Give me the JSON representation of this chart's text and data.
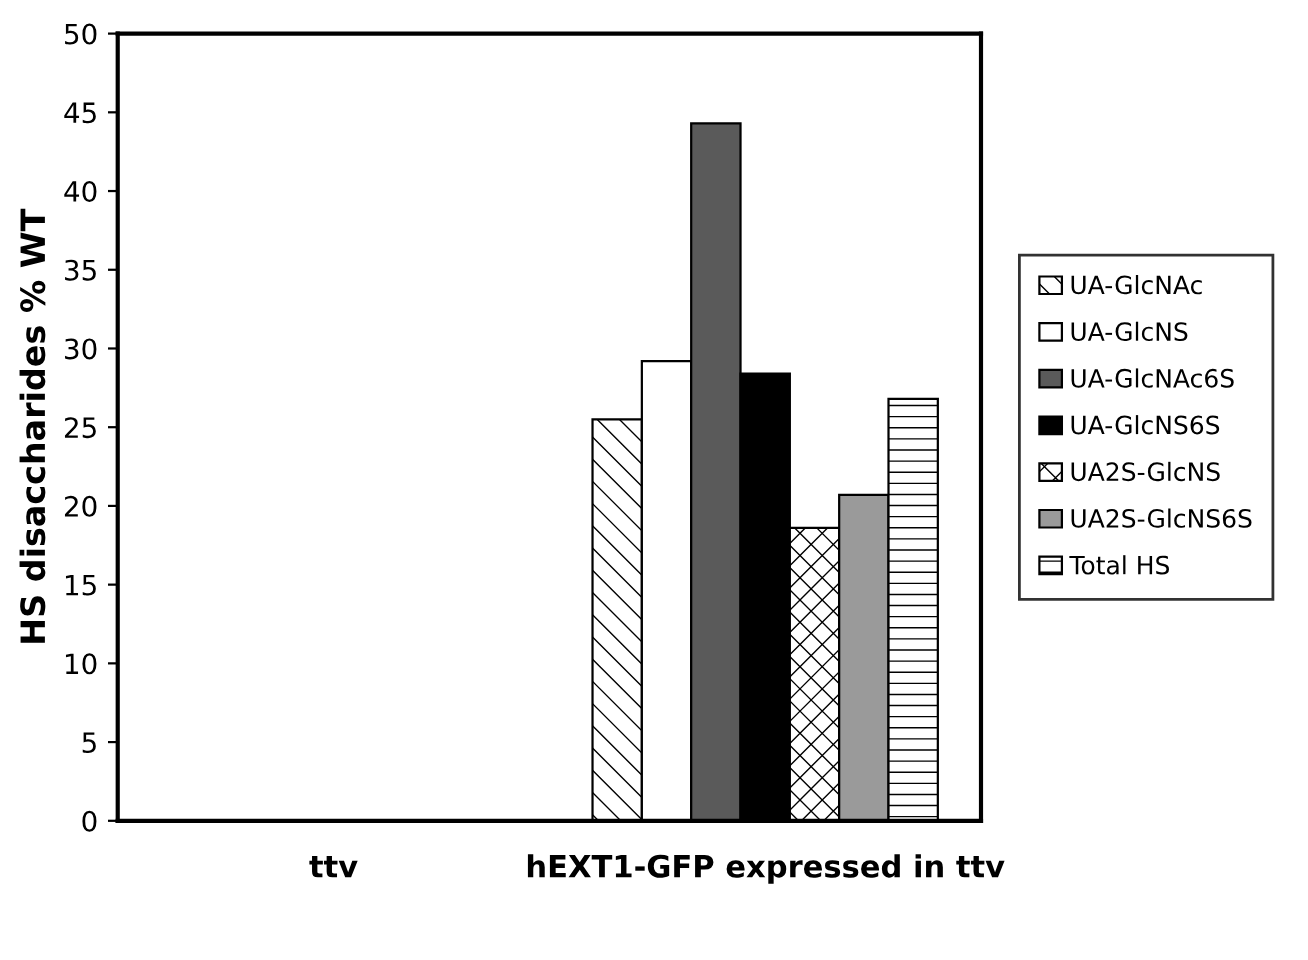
{
  "chart_data": {
    "type": "bar",
    "ylabel": "HS disaccharides % WT",
    "categories": [
      "ttv",
      "hEXT1-GFP expressed in ttv"
    ],
    "series": [
      {
        "name": "UA-GlcNAc",
        "color": "#000000",
        "values": [
          null,
          25.5
        ]
      },
      {
        "name": "UA-GlcNS",
        "color": "#ffffff",
        "values": [
          null,
          29.2
        ]
      },
      {
        "name": "UA-GlcNAc6S",
        "color": "#5a5a5a",
        "values": [
          null,
          44.3
        ]
      },
      {
        "name": "UA-GlcNS6S",
        "color": "#000000",
        "values": [
          null,
          28.4
        ]
      },
      {
        "name": "UA2S-GlcNS",
        "color": "#000000",
        "values": [
          null,
          18.6
        ]
      },
      {
        "name": "UA2S-GlcNS6S",
        "color": "#9a9a9a",
        "values": [
          null,
          20.7
        ]
      },
      {
        "name": "Total HS",
        "color": "#000000",
        "values": [
          null,
          26.8
        ]
      }
    ],
    "ylim": [
      0,
      50
    ],
    "yticks": [
      0,
      5,
      10,
      15,
      20,
      25,
      30,
      35,
      40,
      45,
      50
    ],
    "grid": false,
    "legend": "right"
  }
}
